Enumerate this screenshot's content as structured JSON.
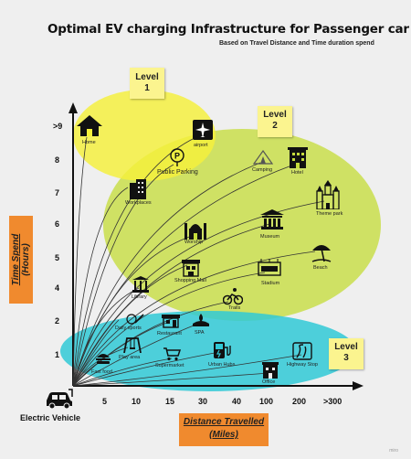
{
  "title": "Optimal EV charging Infrastructure for Passenger car",
  "subtitle": "Based on Travel Distance and Time duration spend",
  "levels": {
    "level1": {
      "line1": "Level",
      "line2": "1"
    },
    "level2": {
      "line1": "Level",
      "line2": "2"
    },
    "level3": {
      "line1": "Level",
      "line2": "3"
    }
  },
  "y_axis": {
    "label_line1": "Time Spend",
    "label_line2": "(Hours)",
    "ticks": [
      "1",
      "2",
      "4",
      "5",
      "6",
      "7",
      "8",
      ">9"
    ]
  },
  "x_axis": {
    "label_line1": "Distance Travelled",
    "label_line2": "(Miles)",
    "ticks": [
      "5",
      "10",
      "15",
      "30",
      "40",
      "100",
      "200",
      ">300"
    ]
  },
  "origin_label": "Electric Vehicle",
  "places": [
    {
      "label": "Home",
      "icon": "home-icon"
    },
    {
      "label": "airport",
      "icon": "airplane-icon"
    },
    {
      "label": "Public Parking",
      "icon": "parking-icon"
    },
    {
      "label": "Camping",
      "icon": "tent-icon"
    },
    {
      "label": "Hotel",
      "icon": "hotel-icon"
    },
    {
      "label": "Workplaces",
      "icon": "office-building-icon"
    },
    {
      "label": "Theme park",
      "icon": "castle-icon"
    },
    {
      "label": "Worship",
      "icon": "mosque-icon"
    },
    {
      "label": "Museum",
      "icon": "museum-icon"
    },
    {
      "label": "Beach",
      "icon": "beach-umbrella-icon"
    },
    {
      "label": "Shopping Mall",
      "icon": "mall-icon"
    },
    {
      "label": "Stadium",
      "icon": "stadium-icon"
    },
    {
      "label": "Library",
      "icon": "library-icon"
    },
    {
      "label": "Trails",
      "icon": "cyclist-icon"
    },
    {
      "label": "Daily sports",
      "icon": "sports-icon"
    },
    {
      "label": "Restaurant",
      "icon": "restaurant-icon"
    },
    {
      "label": "SPA",
      "icon": "spa-icon"
    },
    {
      "label": "Play area",
      "icon": "playground-icon"
    },
    {
      "label": "Fast food",
      "icon": "burger-icon"
    },
    {
      "label": "Supermarket",
      "icon": "cart-icon"
    },
    {
      "label": "Urban Hubs",
      "icon": "charging-station-icon"
    },
    {
      "label": "Highway Stop",
      "icon": "road-icon"
    },
    {
      "label": "Office",
      "icon": "office-icon"
    }
  ],
  "colors": {
    "level1": "#f5f03a",
    "level2": "#c5dc3c",
    "level3": "#30c9d6",
    "label_box": "#f08a2e",
    "sticky": "#fbf48f"
  },
  "watermark": "miro"
}
